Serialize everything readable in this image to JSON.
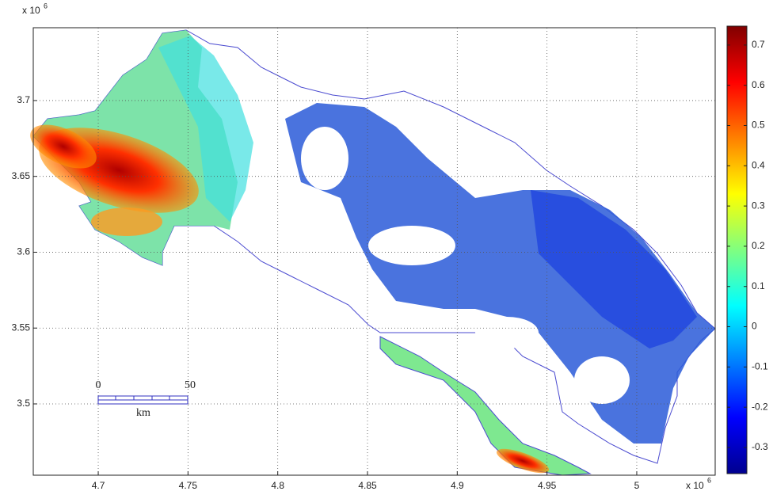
{
  "chart_data": {
    "type": "heatmap",
    "xlim": [
      4.6638,
      5.0437
    ],
    "xticks": [
      4.7,
      4.75,
      4.8,
      4.85,
      4.9,
      4.95,
      5
    ],
    "ylim": [
      3.453,
      3.748
    ],
    "yticks": [
      3.5,
      3.55,
      3.6,
      3.65,
      3.7
    ],
    "x_scale_base": "x 10",
    "x_scale_exponent": "6",
    "y_scale_base": "x 10",
    "y_scale_exponent": "6",
    "grid": true,
    "colorbar": {
      "lim": [
        -0.365,
        0.747
      ],
      "ticks": [
        -0.3,
        -0.2,
        -0.1,
        0,
        0.1,
        0.2,
        0.3,
        0.4,
        0.5,
        0.6,
        0.7
      ],
      "colormap": [
        "#00008f",
        "#0000ff",
        "#0080ff",
        "#00ffff",
        "#80ff80",
        "#ffff00",
        "#ff8000",
        "#ff0000",
        "#800000"
      ]
    },
    "scale_bar": {
      "start": "0",
      "end": "50",
      "unit": "km"
    }
  }
}
